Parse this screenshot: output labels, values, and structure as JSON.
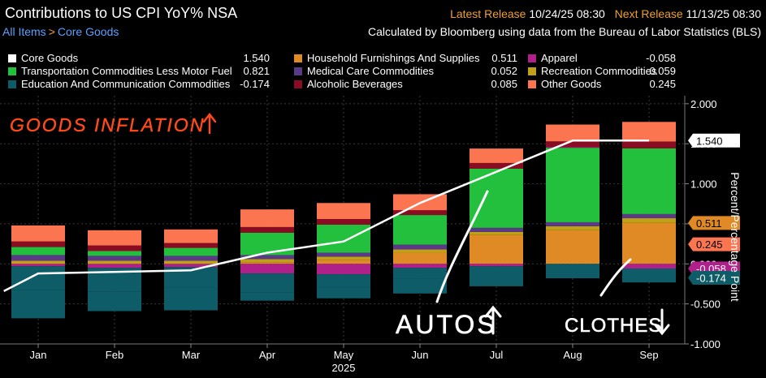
{
  "header": {
    "title": "Contributions to US CPI YoY% NSA",
    "breadcrumb": [
      "All Items",
      "Core Goods"
    ],
    "latest_release_label": "Latest Release",
    "latest_release_value": "10/24/25 08:30",
    "next_release_label": "Next Release",
    "next_release_value": "11/13/25 08:30",
    "source": "Calculated by Bloomberg using data from the Bureau of Labor Statistics (BLS)"
  },
  "legend": [
    {
      "name": "Core Goods",
      "value": "1.540",
      "color": "#ffffff"
    },
    {
      "name": "Transportation Commodities Less Motor Fuel",
      "value": "0.821",
      "color": "#22c03c"
    },
    {
      "name": "Education And Communication Commodities",
      "value": "-0.174",
      "color": "#0d5c67"
    },
    {
      "name": "Household Furnishings And Supplies",
      "value": "0.511",
      "color": "#e08a26"
    },
    {
      "name": "Medical Care Commodities",
      "value": "0.052",
      "color": "#5a3a86"
    },
    {
      "name": "Alcoholic Beverages",
      "value": "0.085",
      "color": "#8a0c22"
    },
    {
      "name": "Apparel",
      "value": "-0.058",
      "color": "#b0208a"
    },
    {
      "name": "Recreation Commodities",
      "value": "0.059",
      "color": "#c0a016"
    },
    {
      "name": "Other Goods",
      "value": "0.245",
      "color": "#fb7551"
    }
  ],
  "annotations": {
    "goods": "GOODS INFLATION",
    "autos": "AUTOS",
    "clothes": "CLOTHES"
  },
  "chart_data": {
    "type": "bar",
    "stacked": true,
    "categories": [
      "Jan",
      "Feb",
      "Mar",
      "Apr",
      "May",
      "Jun",
      "Jul",
      "Aug",
      "Sep"
    ],
    "year_label": "2025",
    "ylabel": "Percent/Percentage Point",
    "ylim": [
      -1.0,
      2.1
    ],
    "yticks": [
      -1.0,
      -0.5,
      0.0,
      0.5,
      1.0,
      1.5,
      2.0
    ],
    "ytick_labels": [
      "-1.000",
      "-0.500",
      "0.000",
      "0.500",
      "1.000",
      "1.500",
      "2.000"
    ],
    "grid": true,
    "series": [
      {
        "name": "Household Furnishings And Supplies",
        "color": "#e08a26",
        "values": [
          0.0,
          0.0,
          0.0,
          0.02,
          0.05,
          0.14,
          0.36,
          0.42,
          0.511
        ]
      },
      {
        "name": "Recreation Commodities",
        "color": "#c0a016",
        "values": [
          0.04,
          0.04,
          0.04,
          0.04,
          0.04,
          0.04,
          0.04,
          0.05,
          0.059
        ]
      },
      {
        "name": "Medical Care Commodities",
        "color": "#5a3a86",
        "values": [
          0.07,
          0.06,
          0.06,
          0.05,
          0.05,
          0.06,
          0.05,
          0.05,
          0.052
        ]
      },
      {
        "name": "Transportation Commodities Less Motor Fuel",
        "color": "#22c03c",
        "values": [
          0.1,
          0.06,
          0.1,
          0.28,
          0.35,
          0.37,
          0.74,
          0.93,
          0.821
        ]
      },
      {
        "name": "Apparel",
        "color": "#b0208a",
        "values": [
          -0.03,
          -0.05,
          -0.04,
          -0.12,
          -0.13,
          -0.05,
          -0.03,
          0.01,
          -0.058
        ]
      },
      {
        "name": "Alcoholic Beverages",
        "color": "#8a0c22",
        "values": [
          0.07,
          0.07,
          0.06,
          0.07,
          0.07,
          0.06,
          0.07,
          0.07,
          0.085
        ]
      },
      {
        "name": "Education And Communication Commodities",
        "color": "#0d5c67",
        "values": [
          -0.3,
          -0.3,
          -0.26,
          -0.24,
          -0.17,
          -0.13,
          -0.2,
          -0.18,
          -0.174
        ]
      },
      {
        "name": "Other Goods",
        "color": "#fb7551",
        "values": [
          0.2,
          0.19,
          0.17,
          0.22,
          0.2,
          0.2,
          0.18,
          0.21,
          0.245
        ]
      }
    ],
    "negative_stack_order": [
      "Apparel",
      "Household Furnishings And Supplies",
      "Recreation Commodities",
      "Education And Communication Commodities"
    ],
    "extra_negative": {
      "name": "",
      "values": [
        -0.35,
        -0.24,
        -0.28,
        -0.1,
        -0.13,
        -0.19,
        -0.05,
        0.0,
        0.0
      ]
    },
    "line": {
      "name": "Core Goods",
      "color": "#ffffff",
      "x": [
        -0.45,
        0.0,
        1.0,
        2.0,
        3.0,
        4.0,
        5.0,
        6.0,
        7.0,
        8.0
      ],
      "values": [
        -0.34,
        -0.12,
        -0.1,
        -0.08,
        0.14,
        0.28,
        0.76,
        1.15,
        1.54,
        1.54
      ]
    },
    "value_tags": [
      {
        "value": 0.245,
        "label": "0.245",
        "color": "#fb7551"
      },
      {
        "value": 1.54,
        "label": "1.540",
        "color": "#ffffff"
      },
      {
        "value": 0.511,
        "label": "0.511",
        "color": "#e08a26"
      },
      {
        "value": -0.058,
        "label": "-0.058",
        "color": "#b0208a"
      },
      {
        "value": -0.174,
        "label": "-0.174",
        "color": "#0d5c67"
      }
    ]
  }
}
